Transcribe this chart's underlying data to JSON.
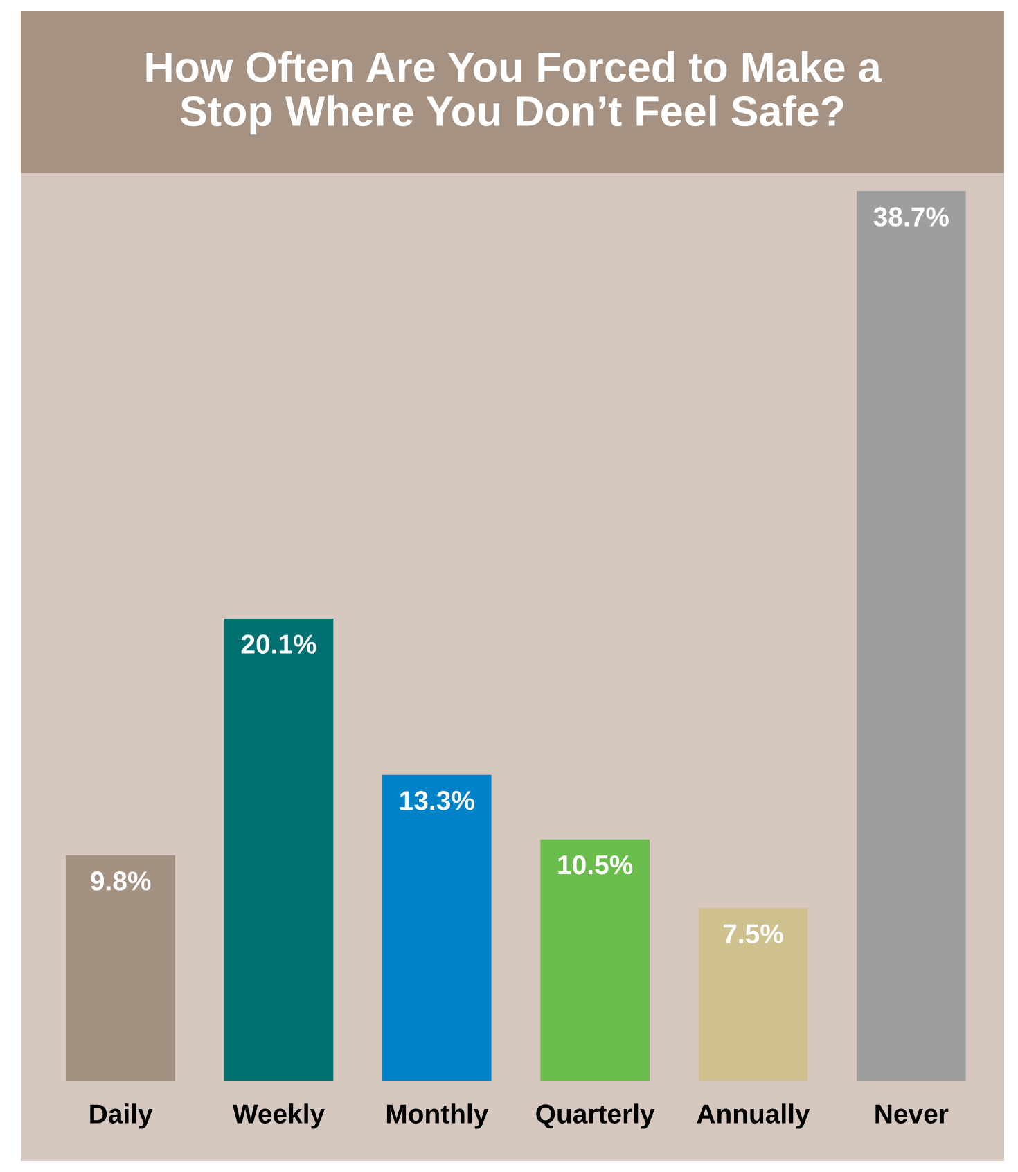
{
  "chart_data": {
    "type": "bar",
    "title": "How Often Are You Forced to Make a\nStop Where You Don’t Feel Safe?",
    "categories": [
      "Daily",
      "Weekly",
      "Monthly",
      "Quarterly",
      "Annually",
      "Never"
    ],
    "values": [
      9.8,
      20.1,
      13.3,
      10.5,
      7.5,
      38.7
    ],
    "colors": [
      "#a39282",
      "#007071",
      "#0082c8",
      "#6abd4b",
      "#cfc18d",
      "#9c9e9f"
    ],
    "value_labels": [
      "9.8%",
      "20.1%",
      "13.3%",
      "10.5%",
      "7.5%",
      "38.7%"
    ],
    "grid": false,
    "legend": false
  }
}
